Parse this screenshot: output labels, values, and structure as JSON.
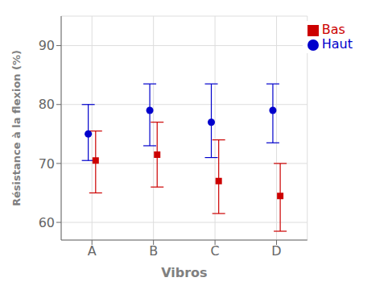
{
  "chart_data": {
    "type": "scatter",
    "categories": [
      "A",
      "B",
      "C",
      "D"
    ],
    "series": [
      {
        "name": "Haut",
        "color": "#0000cc",
        "marker": "circle",
        "values": [
          75.0,
          79.0,
          77.0,
          79.0
        ],
        "upper_err": [
          5.0,
          4.5,
          6.5,
          4.5
        ],
        "lower_err": [
          4.5,
          6.0,
          6.0,
          5.5
        ]
      },
      {
        "name": "Bas",
        "color": "#cc0000",
        "marker": "square",
        "values": [
          70.5,
          71.5,
          67.0,
          64.5
        ],
        "upper_err": [
          5.0,
          5.5,
          7.0,
          5.5
        ],
        "lower_err": [
          5.5,
          5.5,
          5.5,
          6.0
        ]
      }
    ],
    "xlabel": "Vibros",
    "ylabel": "Résistance à la flexion (%)",
    "ylim": [
      57,
      95
    ],
    "yticks": [
      60,
      70,
      80,
      90
    ],
    "grid": true,
    "legend": "upper right"
  }
}
